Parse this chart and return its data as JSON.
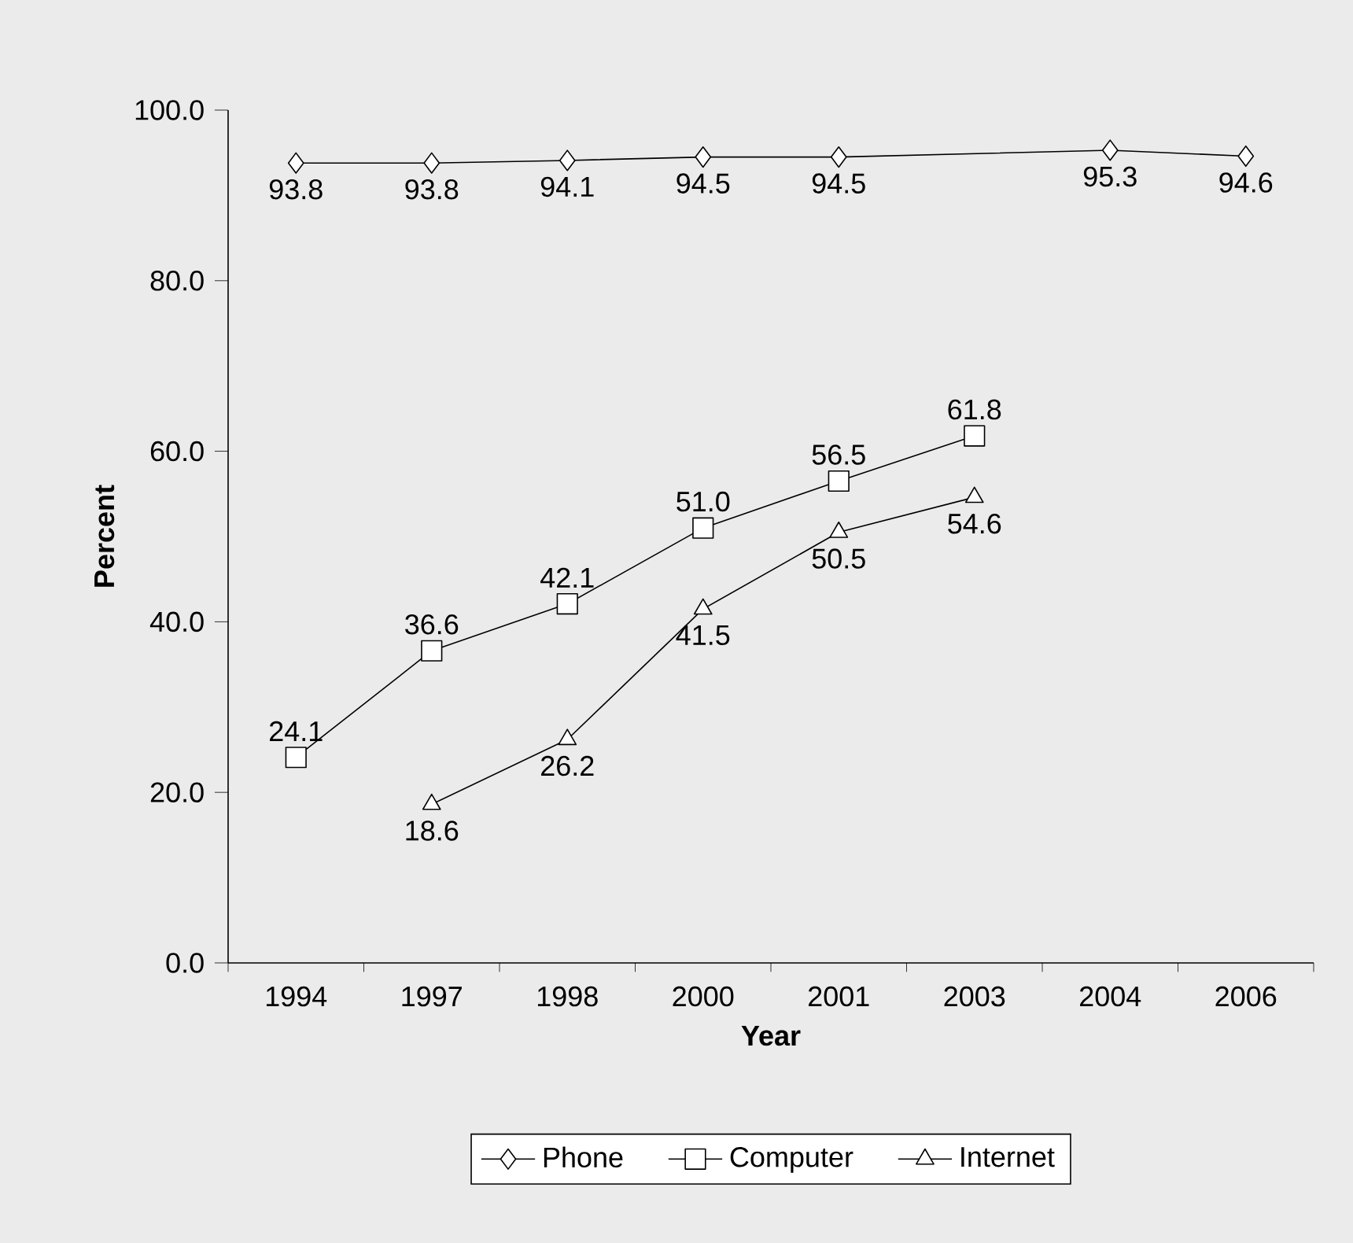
{
  "chart_data": {
    "type": "line",
    "xlabel": "Year",
    "ylabel": "Percent",
    "categories": [
      "1994",
      "1997",
      "1998",
      "2000",
      "2001",
      "2003",
      "2004",
      "2006"
    ],
    "series": [
      {
        "name": "Phone",
        "color": "#000000",
        "marker": "diamond",
        "values": [
          93.8,
          93.8,
          94.1,
          94.5,
          94.5,
          null,
          95.3,
          94.6
        ],
        "value_labels": [
          "93.8",
          "93.8",
          "94.1",
          "94.5",
          "94.5",
          null,
          "95.3",
          "94.6"
        ]
      },
      {
        "name": "Computer",
        "color": "#000000",
        "marker": "square",
        "values": [
          24.1,
          36.6,
          42.1,
          51.0,
          56.5,
          61.8,
          null,
          null
        ],
        "value_labels": [
          "24.1",
          "36.6",
          "42.1",
          "51.0",
          "56.5",
          "61.8",
          null,
          null
        ]
      },
      {
        "name": "Internet",
        "color": "#000000",
        "marker": "triangle",
        "values": [
          null,
          18.6,
          26.2,
          41.5,
          50.5,
          54.6,
          null,
          null
        ],
        "value_labels": [
          null,
          "18.6",
          "26.2",
          "41.5",
          "50.5",
          "54.6",
          null,
          null
        ]
      }
    ],
    "ylim": [
      0,
      100
    ],
    "yticks": [
      {
        "value": 0,
        "label": "0.0"
      },
      {
        "value": 20,
        "label": "20.0"
      },
      {
        "value": 40,
        "label": "40.0"
      },
      {
        "value": 60,
        "label": "60.0"
      },
      {
        "value": 80,
        "label": "80.0"
      },
      {
        "value": 100,
        "label": "100.0"
      }
    ],
    "legend": "bottom",
    "line_style": "solid"
  }
}
